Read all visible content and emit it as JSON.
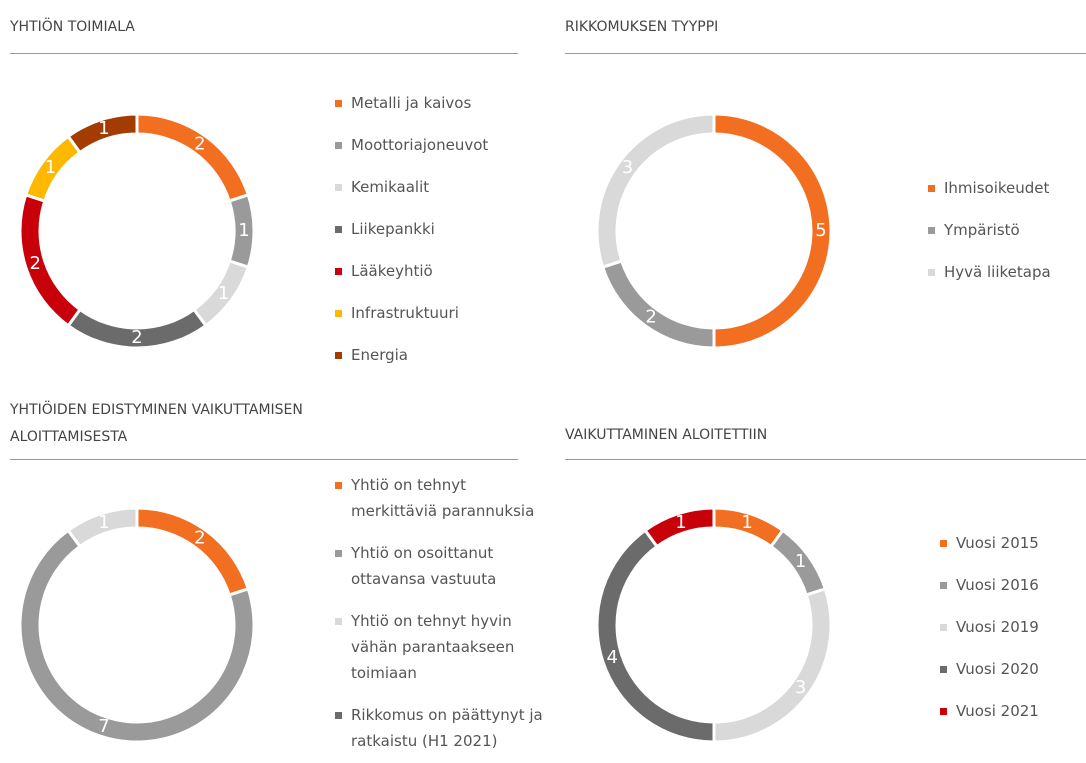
{
  "chart_data": [
    {
      "type": "pie",
      "donut": true,
      "title": "YHTIÖN TOIMIALA",
      "categories": [
        "Metalli ja kaivos",
        "Moottoriajoneuvot",
        "Kemikaalit",
        "Liikepankki",
        "Lääkeyhtiö",
        "Infrastruktuuri",
        "Energia"
      ],
      "values": [
        2,
        1,
        1,
        2,
        2,
        1,
        1
      ],
      "colors": [
        "#f26f21",
        "#9a9a9a",
        "#d9d9d9",
        "#6b6b6b",
        "#c8000a",
        "#ffb800",
        "#a33c00"
      ]
    },
    {
      "type": "pie",
      "donut": true,
      "title": "RIKKOMUKSEN TYYPPI",
      "categories": [
        "Ihmisoikeudet",
        "Ympäristö",
        "Hyvä liiketapa"
      ],
      "values": [
        5,
        2,
        3
      ],
      "colors": [
        "#f26f21",
        "#9a9a9a",
        "#d9d9d9"
      ]
    },
    {
      "type": "pie",
      "donut": true,
      "title": "YHTIÖIDEN EDISTYMINEN VAIKUTTAMISEN ALOITTAMISESTA",
      "categories": [
        "Yhtiö on tehnyt merkittäviä parannuksia",
        "Yhtiö on osoittanut ottavansa vastuuta",
        "Yhtiö on tehnyt hyvin vähän parantaakseen toimiaan",
        "Rikkomus on päättynyt ja ratkaistu (H1 2021)"
      ],
      "values": [
        2,
        7,
        1,
        0
      ],
      "colors": [
        "#f26f21",
        "#9a9a9a",
        "#d9d9d9",
        "#6b6b6b"
      ]
    },
    {
      "type": "pie",
      "donut": true,
      "title": "VAIKUTTAMINEN ALOITETTIIN",
      "categories": [
        "Vuosi 2015",
        "Vuosi 2016",
        "Vuosi 2019",
        "Vuosi 2020",
        "Vuosi 2021"
      ],
      "values": [
        1,
        1,
        3,
        4,
        1
      ],
      "colors": [
        "#f26f21",
        "#9a9a9a",
        "#d9d9d9",
        "#6b6b6b",
        "#c8000a"
      ]
    }
  ]
}
